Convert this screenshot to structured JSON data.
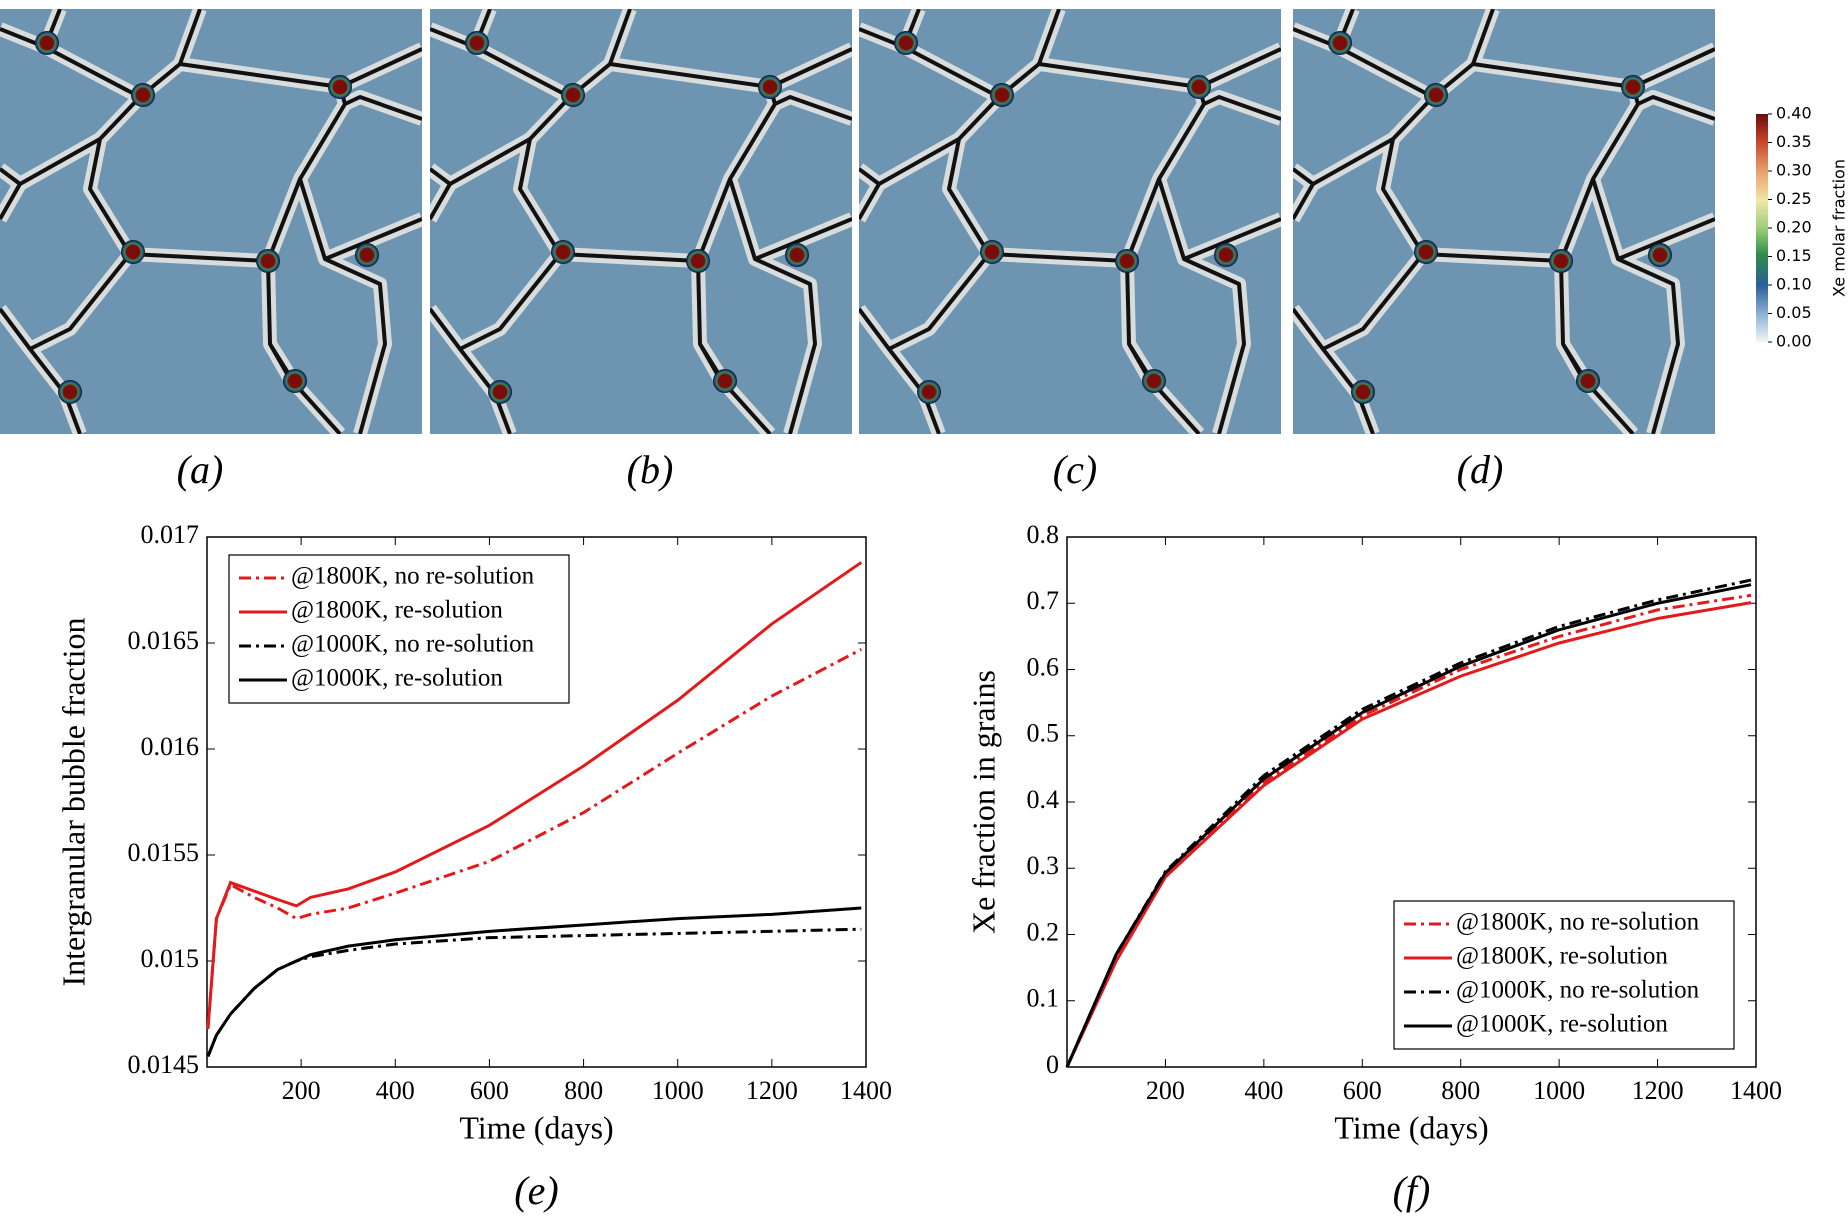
{
  "panels": {
    "labels": [
      "(a)",
      "(b)",
      "(c)",
      "(d)"
    ]
  },
  "colorbar": {
    "title": "Xe molar fraction",
    "lim": [
      0,
      0.4
    ],
    "ticks": [
      {
        "value": 0,
        "label": "0.00"
      },
      {
        "value": 0.05,
        "label": "0.05"
      },
      {
        "value": 0.1,
        "label": "0.10"
      },
      {
        "value": 0.15,
        "label": "0.15"
      },
      {
        "value": 0.2,
        "label": "0.20"
      },
      {
        "value": 0.25,
        "label": "0.25"
      },
      {
        "value": 0.3,
        "label": "0.30"
      },
      {
        "value": 0.35,
        "label": "0.35"
      },
      {
        "value": 0.4,
        "label": "0.40"
      }
    ]
  },
  "chart_data": [
    {
      "type": "line",
      "panel_label": "(e)",
      "xlabel": "Time (days)",
      "ylabel": "Intergranular bubble fraction",
      "xlim": [
        0,
        1400
      ],
      "ylim": [
        0.0145,
        0.017
      ],
      "xticks": [
        200,
        400,
        600,
        800,
        1000,
        1200,
        1400
      ],
      "yticks": [
        0.0145,
        0.015,
        0.0155,
        0.016,
        0.0165,
        0.017
      ],
      "legend": "upper left",
      "x": [
        2,
        20,
        50,
        100,
        150,
        190,
        220,
        300,
        400,
        600,
        800,
        1000,
        1200,
        1390
      ],
      "series": [
        {
          "name": "@1800K, no re-solution",
          "color": "#e31a1c",
          "dash": "dashdot",
          "values": [
            0.01468,
            0.0152,
            0.01536,
            0.0153,
            0.01525,
            0.0152,
            0.01522,
            0.01525,
            0.01532,
            0.01547,
            0.0157,
            0.01598,
            0.01625,
            0.01647
          ]
        },
        {
          "name": "@1800K, re-solution",
          "color": "#e31a1c",
          "dash": "solid",
          "values": [
            0.01468,
            0.0152,
            0.01537,
            0.01533,
            0.01529,
            0.01526,
            0.0153,
            0.01534,
            0.01542,
            0.01564,
            0.01592,
            0.01623,
            0.01659,
            0.01688
          ]
        },
        {
          "name": "@1000K, no re-solution",
          "color": "#000000",
          "dash": "dashdot",
          "values": [
            0.01455,
            0.01465,
            0.01475,
            0.01487,
            0.01496,
            0.015,
            0.01502,
            0.01505,
            0.01508,
            0.01511,
            0.01512,
            0.01513,
            0.01514,
            0.01515
          ]
        },
        {
          "name": "@1000K, re-solution",
          "color": "#000000",
          "dash": "solid",
          "values": [
            0.01455,
            0.01465,
            0.01475,
            0.01487,
            0.01496,
            0.015,
            0.01503,
            0.01507,
            0.0151,
            0.01514,
            0.01517,
            0.0152,
            0.01522,
            0.01525
          ]
        }
      ]
    },
    {
      "type": "line",
      "panel_label": "(f)",
      "xlabel": "Time (days)",
      "ylabel": "Xe fraction in grains",
      "xlim": [
        0,
        1400
      ],
      "ylim": [
        0,
        0.8
      ],
      "xticks": [
        200,
        400,
        600,
        800,
        1000,
        1200,
        1400
      ],
      "yticks": [
        0,
        0.1,
        0.2,
        0.3,
        0.4,
        0.5,
        0.6,
        0.7,
        0.8
      ],
      "legend": "lower right",
      "x": [
        0,
        100,
        200,
        400,
        600,
        800,
        1000,
        1200,
        1390
      ],
      "series": [
        {
          "name": "@1800K, no re-solution",
          "color": "#e31a1c",
          "dash": "dashdot",
          "values": [
            0,
            0.165,
            0.29,
            0.43,
            0.53,
            0.6,
            0.65,
            0.69,
            0.712
          ]
        },
        {
          "name": "@1800K, re-solution",
          "color": "#e31a1c",
          "dash": "solid",
          "values": [
            0,
            0.16,
            0.287,
            0.425,
            0.525,
            0.59,
            0.64,
            0.677,
            0.701
          ]
        },
        {
          "name": "@1000K, no re-solution",
          "color": "#000000",
          "dash": "dashdot",
          "values": [
            0,
            0.17,
            0.295,
            0.44,
            0.54,
            0.61,
            0.665,
            0.705,
            0.735
          ]
        },
        {
          "name": "@1000K, re-solution",
          "color": "#000000",
          "dash": "solid",
          "values": [
            0,
            0.17,
            0.293,
            0.435,
            0.535,
            0.605,
            0.66,
            0.7,
            0.728
          ]
        }
      ]
    }
  ]
}
